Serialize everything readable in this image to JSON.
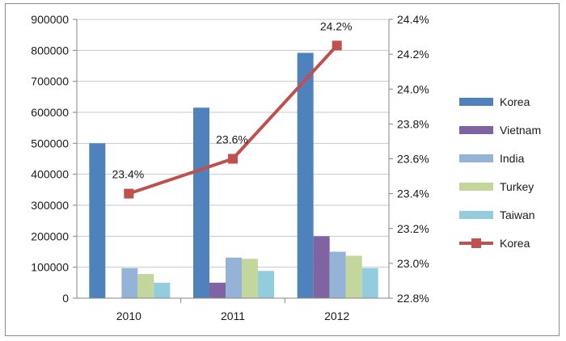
{
  "chart_data": {
    "type": "bar",
    "categories": [
      "2010",
      "2011",
      "2012"
    ],
    "series": [
      {
        "name": "Korea",
        "kind": "bar",
        "axis": "left",
        "color": "#4F81BD",
        "values": [
          500000,
          615000,
          792000
        ]
      },
      {
        "name": "Vietnam",
        "kind": "bar",
        "axis": "left",
        "color": "#8064A2",
        "values": [
          0,
          50000,
          200000
        ]
      },
      {
        "name": "India",
        "kind": "bar",
        "axis": "left",
        "color": "#95B3D7",
        "values": [
          97000,
          131000,
          150000
        ]
      },
      {
        "name": "Turkey",
        "kind": "bar",
        "axis": "left",
        "color": "#C3D69B",
        "values": [
          78000,
          127000,
          137000
        ]
      },
      {
        "name": "Taiwan",
        "kind": "bar",
        "axis": "left",
        "color": "#93CDDD",
        "values": [
          50000,
          88000,
          97000
        ]
      },
      {
        "name": "Korea",
        "kind": "line",
        "axis": "right",
        "color": "#C0504D",
        "values": [
          23.4,
          23.6,
          24.25
        ],
        "labels": [
          "23.4%",
          "23.6%",
          "24.2%"
        ]
      }
    ],
    "y_left": {
      "min": 0,
      "max": 900000,
      "step": 100000,
      "ticks": [
        "0",
        "100000",
        "200000",
        "300000",
        "400000",
        "500000",
        "600000",
        "700000",
        "800000",
        "900000"
      ]
    },
    "y_right": {
      "min": 22.8,
      "max": 24.4,
      "step": 0.2,
      "ticks": [
        "22.8%",
        "23.0%",
        "23.2%",
        "23.4%",
        "23.6%",
        "23.8%",
        "24.0%",
        "24.2%",
        "24.4%"
      ]
    },
    "title": "",
    "xlabel": "",
    "ylabel": "",
    "grid": true,
    "legend_position": "right"
  }
}
